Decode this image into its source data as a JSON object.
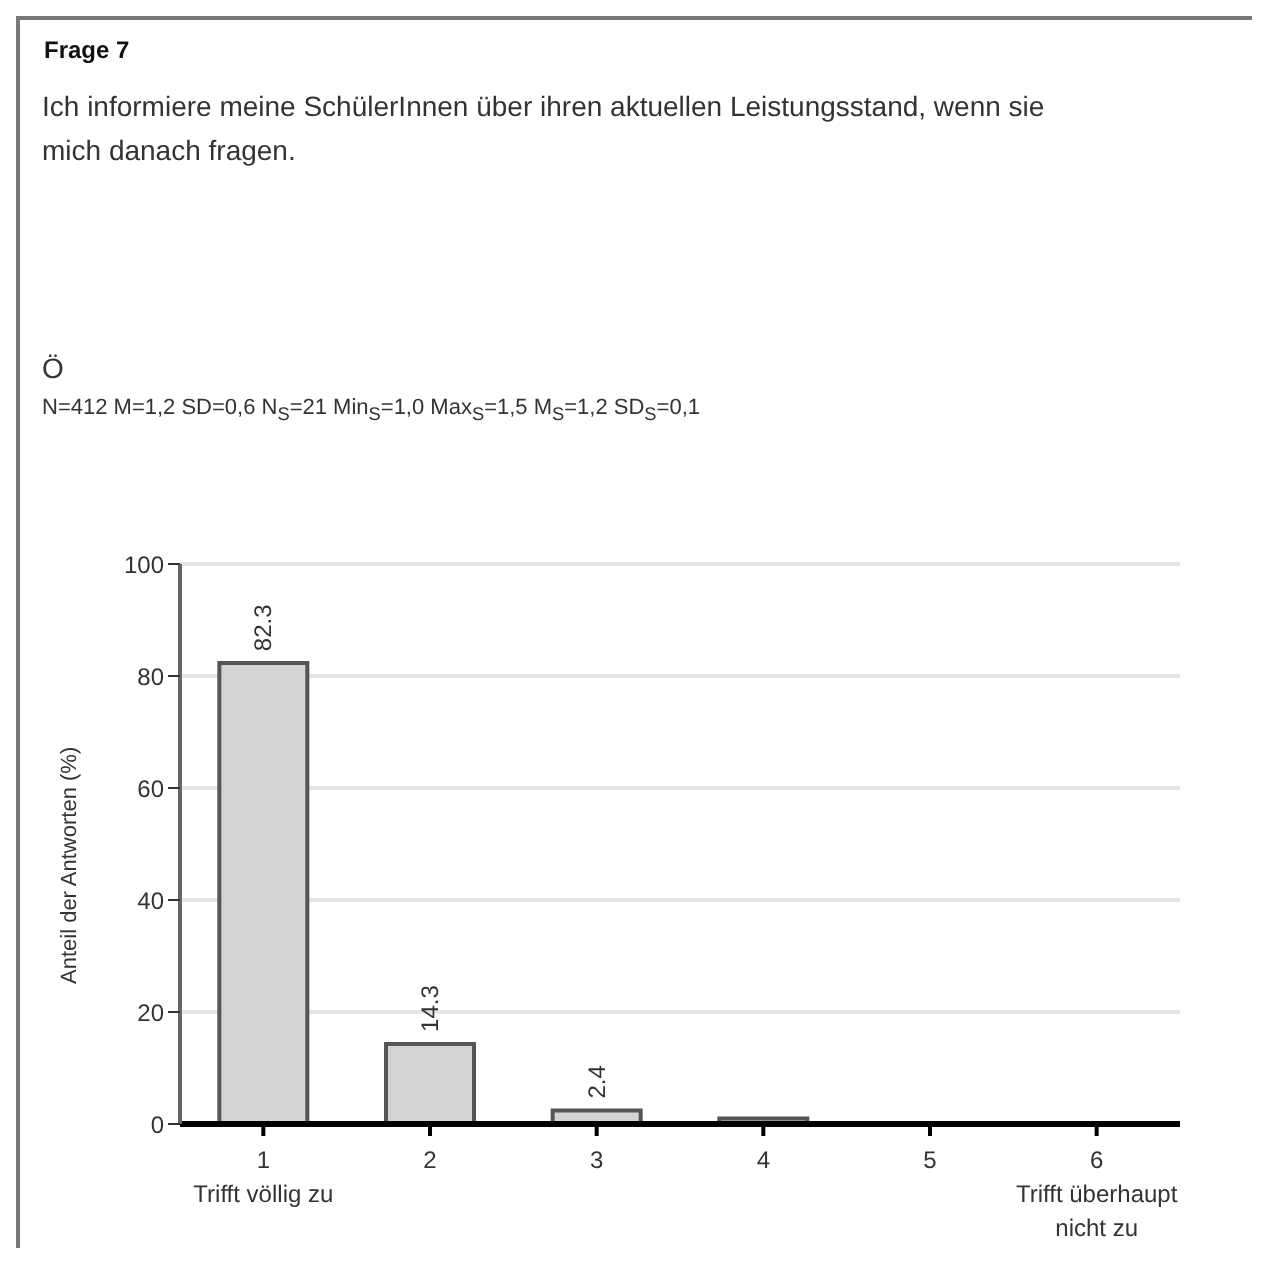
{
  "chart_data": {
    "type": "bar",
    "title": "Frage 7",
    "subtitle": "Ich informiere meine SchülerInnen über ihren aktuellen Leistungsstand, wenn sie mich danach fragen.",
    "annotations": [
      "Ö",
      "N=412 M=1,2 SD=0,6 N$_{S}$=21 Min$_{S}$=1,0 Max$_{S}$=1,5 M$_{S}$=1,2 SD$_{S}$=0,1"
    ],
    "categories": [
      "1\nTrifft völlig zu",
      "2",
      "3",
      "4",
      "5",
      "6\nTrifft überhaupt\nnicht zu"
    ],
    "values": [
      82.3,
      14.3,
      2.4,
      1.0,
      0,
      0
    ],
    "value_labels": [
      "82.3",
      "14.3",
      "2.4",
      null,
      null,
      null
    ],
    "color": "#d3d3d3",
    "ylabel": "Anteil der Antworten (%)",
    "ylim": [
      0,
      100
    ],
    "yticks": [
      0,
      20,
      40,
      60,
      80,
      100
    ],
    "grid": "y"
  }
}
